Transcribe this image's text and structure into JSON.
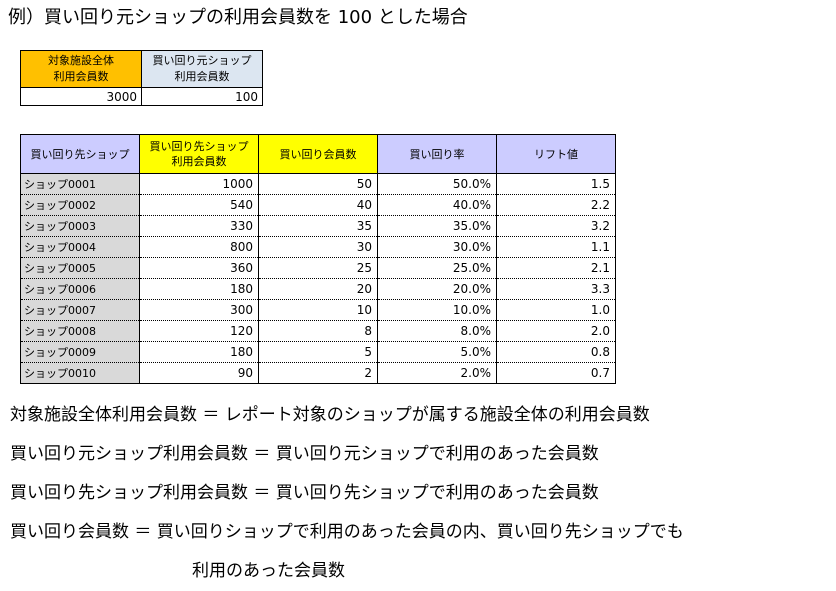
{
  "heading": "例）買い回り元ショップの利用会員数を 100 とした場合",
  "summary": {
    "headers": [
      "対象施設全体\n利用会員数",
      "買い回り元ショップ\n利用会員数"
    ],
    "values": [
      "3000",
      "100"
    ]
  },
  "table": {
    "headers": [
      "買い回り先ショップ",
      "買い回り先ショップ\n利用会員数",
      "買い回り会員数",
      "買い回り率",
      "リフト値"
    ],
    "rows": [
      [
        "ショップ0001",
        "1000",
        "50",
        "50.0%",
        "1.5"
      ],
      [
        "ショップ0002",
        "540",
        "40",
        "40.0%",
        "2.2"
      ],
      [
        "ショップ0003",
        "330",
        "35",
        "35.0%",
        "3.2"
      ],
      [
        "ショップ0004",
        "800",
        "30",
        "30.0%",
        "1.1"
      ],
      [
        "ショップ0005",
        "360",
        "25",
        "25.0%",
        "2.1"
      ],
      [
        "ショップ0006",
        "180",
        "20",
        "20.0%",
        "3.3"
      ],
      [
        "ショップ0007",
        "300",
        "10",
        "10.0%",
        "1.0"
      ],
      [
        "ショップ0008",
        "120",
        "8",
        "8.0%",
        "2.0"
      ],
      [
        "ショップ0009",
        "180",
        "5",
        "5.0%",
        "0.8"
      ],
      [
        "ショップ0010",
        "90",
        "2",
        "2.0%",
        "0.7"
      ]
    ]
  },
  "definitions": [
    "対象施設全体利用会員数 ＝ レポート対象のショップが属する施設全体の利用会員数",
    "買い回り元ショップ利用会員数 ＝ 買い回り元ショップで利用のあった会員数",
    "買い回り先ショップ利用会員数 ＝ 買い回り先ショップで利用のあった会員数",
    "買い回り会員数 ＝ 買い回りショップで利用のあった会員の内、買い回り先ショップでも",
    "利用のあった会員数"
  ]
}
